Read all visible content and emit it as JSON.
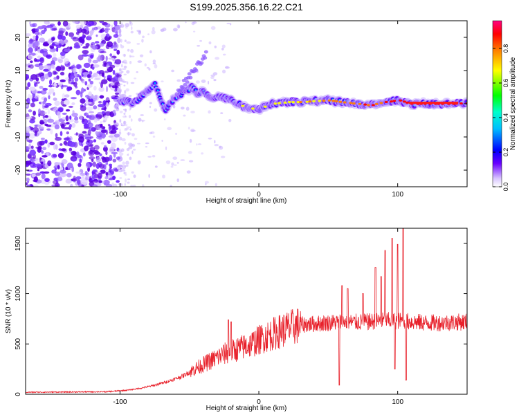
{
  "title": "S199.2025.356.16.22.C21",
  "chart_data": [
    {
      "type": "heatmap",
      "xlabel": "Height of straight line (km)",
      "ylabel": "Frequency (Hz)",
      "xlim": [
        -168,
        150
      ],
      "ylim": [
        -25,
        25
      ],
      "xticks": [
        -100,
        0,
        100
      ],
      "yticks": [
        -20,
        -10,
        0,
        10,
        20
      ],
      "colorbar": {
        "label": "Normalized spectral amplitude",
        "range": [
          0.0,
          0.96
        ],
        "ticks": [
          0.0,
          0.2,
          0.4,
          0.6,
          0.8
        ],
        "tick_labels": [
          "0.0",
          "0.2",
          "0.4",
          "0.6",
          "0.8"
        ],
        "colors": [
          "#ffffff",
          "#6a00ff",
          "#0000ff",
          "#00bfff",
          "#00ffff",
          "#00ff00",
          "#ffff00",
          "#ff8000",
          "#ff0000",
          "#ff0080"
        ]
      },
      "ridge": {
        "x": [
          -100,
          -95,
          -90,
          -85,
          -80,
          -75,
          -72,
          -68,
          -64,
          -60,
          -56,
          -52,
          -48,
          -44,
          -40,
          -35,
          -30,
          -25,
          -20,
          -15,
          -10,
          -5,
          0,
          10,
          20,
          30,
          40,
          50,
          60,
          70,
          80,
          90,
          100,
          110,
          120,
          130,
          140,
          150
        ],
        "freq": [
          0.5,
          1,
          0,
          2,
          4,
          6,
          3,
          -2,
          0,
          2,
          3,
          4,
          5,
          3,
          4,
          2,
          2,
          2,
          1,
          0,
          -1,
          -1.5,
          -1.5,
          0,
          0.5,
          0.5,
          0.8,
          1,
          0.5,
          0,
          -0.5,
          0.5,
          1,
          0,
          0,
          0,
          0,
          0.2
        ]
      }
    },
    {
      "type": "line",
      "xlabel": "Height of straight line (km)",
      "ylabel": "SNR (10 * v/v)",
      "xlim": [
        -168,
        150
      ],
      "ylim": [
        0,
        1650
      ],
      "xticks": [
        -100,
        0,
        100
      ],
      "yticks": [
        0,
        500,
        1000,
        1500
      ],
      "color": "#e8202a",
      "envelope": {
        "x": [
          -168,
          -140,
          -110,
          -95,
          -85,
          -75,
          -65,
          -55,
          -45,
          -35,
          -25,
          -15,
          -5,
          0,
          10,
          20,
          30,
          40,
          50,
          60,
          70,
          80,
          90,
          100,
          110,
          120,
          130,
          140,
          150
        ],
        "y": [
          20,
          22,
          25,
          40,
          60,
          90,
          130,
          180,
          260,
          330,
          400,
          450,
          500,
          540,
          600,
          650,
          690,
          700,
          710,
          720,
          715,
          720,
          730,
          730,
          720,
          710,
          710,
          715,
          720
        ]
      },
      "spikes": [
        {
          "x": -22,
          "y": 740
        },
        {
          "x": -20,
          "y": 720
        },
        {
          "x": 58,
          "y": 90
        },
        {
          "x": 60,
          "y": 1080
        },
        {
          "x": 64,
          "y": 1050
        },
        {
          "x": 75,
          "y": 1000
        },
        {
          "x": 84,
          "y": 1260
        },
        {
          "x": 88,
          "y": 1170
        },
        {
          "x": 91,
          "y": 1430
        },
        {
          "x": 96,
          "y": 1550
        },
        {
          "x": 98,
          "y": 250
        },
        {
          "x": 100,
          "y": 1490
        },
        {
          "x": 104,
          "y": 1650
        },
        {
          "x": 106,
          "y": 140
        }
      ]
    }
  ]
}
